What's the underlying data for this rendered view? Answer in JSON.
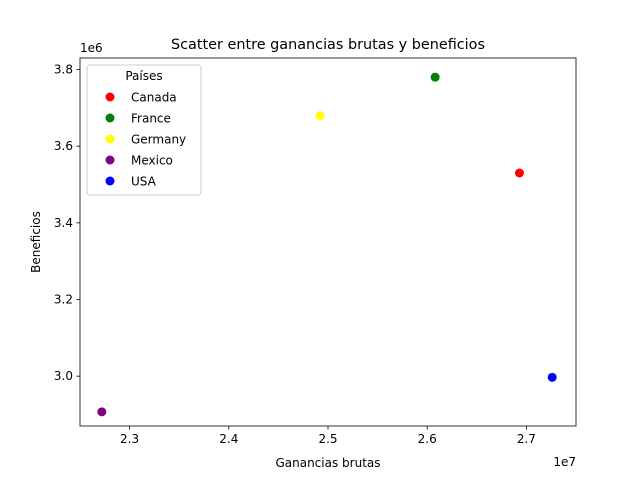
{
  "chart_data": {
    "type": "scatter",
    "title": "Scatter entre ganancias brutas y beneficios",
    "xlabel": "Ganancias brutas",
    "ylabel": "Beneficios",
    "x_offset_label": "1e7",
    "y_offset_label": "1e6",
    "xlim": [
      22500000,
      27500000
    ],
    "ylim": [
      2870000,
      3830000
    ],
    "x_ticks": [
      23000000,
      24000000,
      25000000,
      26000000,
      27000000
    ],
    "x_tick_labels": [
      "2.3",
      "2.4",
      "2.5",
      "2.6",
      "2.7"
    ],
    "y_ticks": [
      3000000,
      3200000,
      3400000,
      3600000,
      3800000
    ],
    "y_tick_labels": [
      "3.0",
      "3.2",
      "3.4",
      "3.6",
      "3.8"
    ],
    "grid": false,
    "legend": {
      "title": "Países",
      "placement": "top-left"
    },
    "series": [
      {
        "name": "Canada",
        "color": "#ff0000",
        "x": [
          26930000
        ],
        "y": [
          3530000
        ]
      },
      {
        "name": "France",
        "color": "#008000",
        "x": [
          26080000
        ],
        "y": [
          3780000
        ]
      },
      {
        "name": "Germany",
        "color": "#ffff00",
        "x": [
          24920000
        ],
        "y": [
          3680000
        ]
      },
      {
        "name": "Mexico",
        "color": "#800080",
        "x": [
          22720000
        ],
        "y": [
          2907000
        ]
      },
      {
        "name": "USA",
        "color": "#0000ff",
        "x": [
          27260000
        ],
        "y": [
          2997000
        ]
      }
    ]
  }
}
